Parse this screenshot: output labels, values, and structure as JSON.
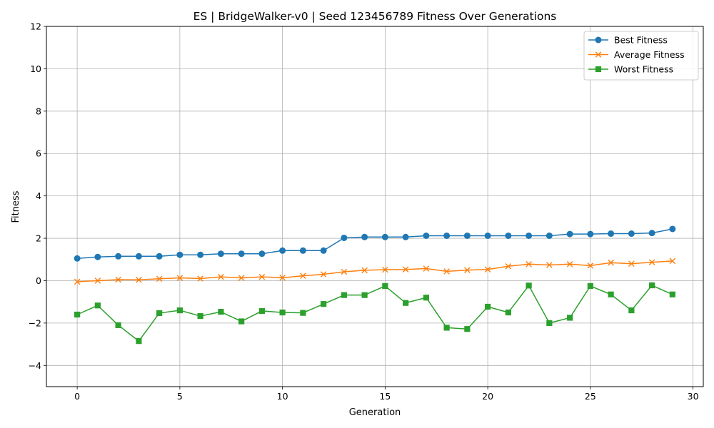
{
  "chart_data": {
    "type": "line",
    "title": "ES | BridgeWalker-v0 | Seed 123456789 Fitness Over Generations",
    "xlabel": "Generation",
    "ylabel": "Fitness",
    "xlim": [
      -1.5,
      30.5
    ],
    "ylim": [
      -5,
      12
    ],
    "xticks": [
      0,
      5,
      10,
      15,
      20,
      25,
      30
    ],
    "yticks": [
      -4,
      -2,
      0,
      2,
      4,
      6,
      8,
      10,
      12
    ],
    "grid": true,
    "legend_position": "top-right",
    "x": [
      0,
      1,
      2,
      3,
      4,
      5,
      6,
      7,
      8,
      9,
      10,
      11,
      12,
      13,
      14,
      15,
      16,
      17,
      18,
      19,
      20,
      21,
      22,
      23,
      24,
      25,
      26,
      27,
      28,
      29
    ],
    "series": [
      {
        "name": "Best Fitness",
        "color": "#1f77b4",
        "marker": "circle",
        "values": [
          1.05,
          1.12,
          1.15,
          1.15,
          1.15,
          1.22,
          1.22,
          1.27,
          1.27,
          1.27,
          1.42,
          1.42,
          1.42,
          2.02,
          2.06,
          2.06,
          2.06,
          2.12,
          2.12,
          2.12,
          2.12,
          2.12,
          2.12,
          2.12,
          2.2,
          2.2,
          2.22,
          2.22,
          2.25,
          2.44
        ]
      },
      {
        "name": "Average Fitness",
        "color": "#ff7f0e",
        "marker": "x",
        "values": [
          -0.05,
          0.0,
          0.05,
          0.04,
          0.09,
          0.13,
          0.1,
          0.18,
          0.13,
          0.18,
          0.14,
          0.23,
          0.3,
          0.42,
          0.49,
          0.52,
          0.53,
          0.57,
          0.44,
          0.5,
          0.53,
          0.68,
          0.78,
          0.74,
          0.78,
          0.71,
          0.85,
          0.8,
          0.87,
          0.93
        ]
      },
      {
        "name": "Worst Fitness",
        "color": "#2ca02c",
        "marker": "square",
        "values": [
          -1.6,
          -1.17,
          -2.1,
          -2.85,
          -1.53,
          -1.4,
          -1.67,
          -1.47,
          -1.92,
          -1.43,
          -1.5,
          -1.52,
          -1.1,
          -0.68,
          -0.68,
          -0.25,
          -1.05,
          -0.8,
          -2.22,
          -2.28,
          -1.23,
          -1.5,
          -0.23,
          -2.0,
          -1.75,
          -0.25,
          -0.65,
          -1.4,
          -0.22,
          -0.65
        ]
      }
    ]
  }
}
